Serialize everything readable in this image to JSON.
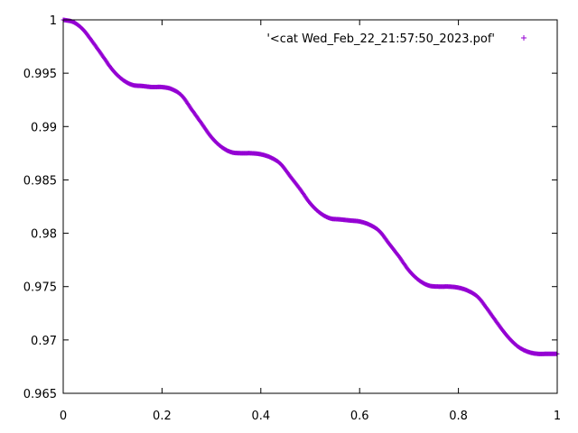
{
  "chart_data": {
    "type": "scatter",
    "title": "",
    "xlabel": "",
    "ylabel": "",
    "xlim": [
      0,
      1
    ],
    "ylim": [
      0.965,
      1
    ],
    "xticks": [
      0,
      0.2,
      0.4,
      0.6,
      0.8,
      1
    ],
    "xtick_labels": [
      "0",
      "0.2",
      "0.4",
      "0.6",
      "0.8",
      "1"
    ],
    "yticks": [
      0.965,
      0.97,
      0.975,
      0.98,
      0.985,
      0.99,
      0.995,
      1
    ],
    "ytick_labels": [
      "0.965",
      "0.97",
      "0.975",
      "0.98",
      "0.985",
      "0.99",
      "0.995",
      "1"
    ],
    "grid": false,
    "legend_position": "top-right",
    "marker": "+",
    "series": [
      {
        "name": "'<cat Wed_Feb_22_21:57:50_2023.pof'",
        "color": "#9400d3",
        "x": [
          0,
          0.02,
          0.04,
          0.06,
          0.08,
          0.1,
          0.12,
          0.14,
          0.16,
          0.18,
          0.2,
          0.22,
          0.24,
          0.26,
          0.28,
          0.3,
          0.32,
          0.34,
          0.36,
          0.38,
          0.4,
          0.42,
          0.44,
          0.46,
          0.48,
          0.5,
          0.52,
          0.54,
          0.56,
          0.58,
          0.6,
          0.62,
          0.64,
          0.66,
          0.68,
          0.7,
          0.72,
          0.74,
          0.76,
          0.78,
          0.8,
          0.82,
          0.84,
          0.86,
          0.88,
          0.9,
          0.92,
          0.94,
          0.96,
          0.98,
          1
        ],
        "y": [
          1,
          0.9998,
          0.9991,
          0.9979,
          0.9966,
          0.9953,
          0.9944,
          0.9939,
          0.9938,
          0.9937,
          0.9937,
          0.9935,
          0.9929,
          0.9916,
          0.9903,
          0.989,
          0.9881,
          0.9876,
          0.9875,
          0.9875,
          0.9874,
          0.9871,
          0.9865,
          0.9853,
          0.9841,
          0.9828,
          0.9819,
          0.9814,
          0.9813,
          0.9812,
          0.9811,
          0.9808,
          0.9802,
          0.979,
          0.9778,
          0.9765,
          0.9756,
          0.9751,
          0.975,
          0.975,
          0.9749,
          0.9746,
          0.974,
          0.9728,
          0.9715,
          0.9703,
          0.9694,
          0.9689,
          0.9687,
          0.9687,
          0.9687
        ]
      }
    ]
  }
}
